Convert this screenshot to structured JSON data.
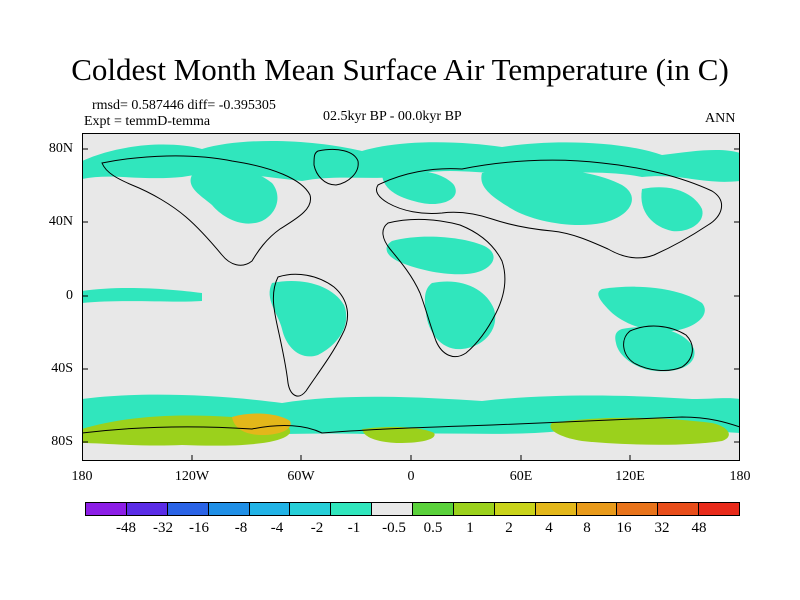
{
  "title": "Coldest Month Mean Surface Air Temperature (in C)",
  "stats": {
    "rmsd_diff": "rmsd= 0.587446 diff= -0.395305",
    "experiment": "Expt = temmD-temma",
    "period": "02.5kyr BP - 00.0kyr BP",
    "season": "ANN"
  },
  "axes": {
    "y_ticks": [
      "80N",
      "40N",
      "0",
      "40S",
      "80S"
    ],
    "x_ticks": [
      "180",
      "120W",
      "60W",
      "0",
      "60E",
      "120E",
      "180"
    ]
  },
  "colorbar": {
    "colors": [
      "#8c1ee6",
      "#5a2ce6",
      "#2a63e6",
      "#1f8fe6",
      "#21b3e6",
      "#27cfd8",
      "#30e6bd",
      "#e8e8e8",
      "#5ad13b",
      "#9bd11c",
      "#c9d31a",
      "#e3b71a",
      "#e89a1a",
      "#e8731a",
      "#e84d1a",
      "#e82a1a"
    ],
    "labels": [
      "-48",
      "-32",
      "-16",
      "-8",
      "-4",
      "-2",
      "-1",
      "-0.5",
      "0.5",
      "1",
      "2",
      "4",
      "8",
      "16",
      "32",
      "48"
    ]
  },
  "map": {
    "background_color": "#e8e8e8",
    "cooling_color": "#30e6bd",
    "moderate_cooling_color": "#27cfd8",
    "warming_color": "#9bd11c",
    "strong_warming_color": "#e3b71a"
  }
}
